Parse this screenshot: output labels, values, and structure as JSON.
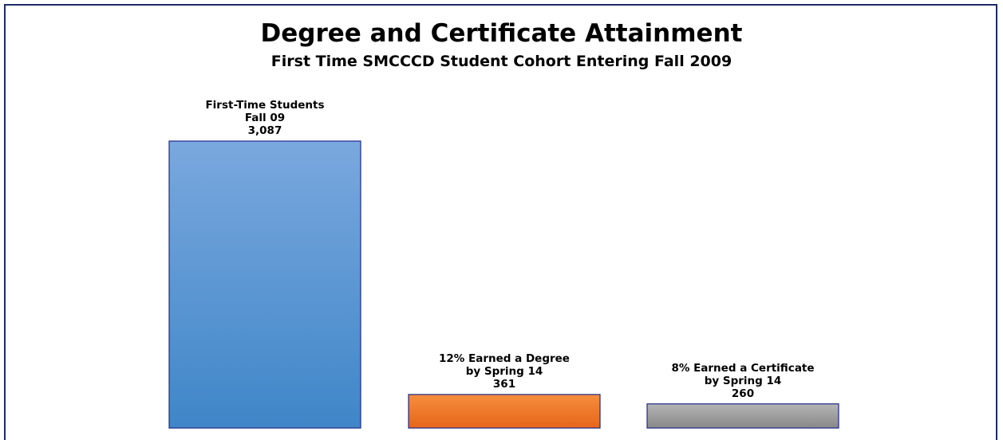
{
  "chart_data": {
    "type": "bar",
    "title": "Degree and Certificate Attainment",
    "subtitle": "First Time SMCCCD Student Cohort Entering Fall 2009",
    "categories": [
      "First-Time Students\nFall 09",
      "12% Earned a Degree\nby Spring 14",
      "8% Earned a Certificate\nby Spring 14"
    ],
    "values": [
      3087,
      361,
      260
    ],
    "value_labels": [
      "3,087",
      "361",
      "260"
    ],
    "colors": [
      [
        "#7aa8de",
        "#3f86c8"
      ],
      [
        "#f78d3e",
        "#e5661a"
      ],
      [
        "#b5b5b5",
        "#888888"
      ]
    ]
  }
}
